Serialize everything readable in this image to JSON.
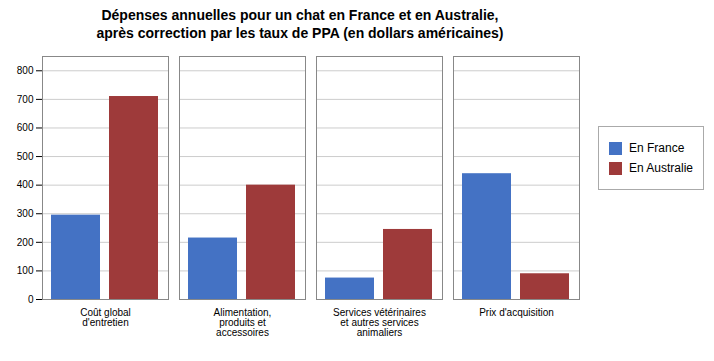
{
  "chart_data": {
    "type": "bar",
    "title": "Dépenses annuelles pour un chat en France et en Australie,\naprès correction par les taux de PPA (en dollars américaines)",
    "categories": [
      "Coût global\nd'entretien",
      "Alimentation,\nproduits et\naccessoires",
      "Services vétérinaires\net autres services\nanimaliers",
      "Prix d'acquisition"
    ],
    "series": [
      {
        "name": "En France",
        "color": "#4472C4",
        "values": [
          295,
          215,
          75,
          440
        ]
      },
      {
        "name": "En Australie",
        "color": "#9E3A3A",
        "values": [
          710,
          400,
          245,
          90
        ]
      }
    ],
    "ylim": [
      0,
      850
    ],
    "yticks": [
      0,
      100,
      200,
      300,
      400,
      500,
      600,
      700,
      800
    ],
    "grid": true,
    "legend": "right"
  }
}
